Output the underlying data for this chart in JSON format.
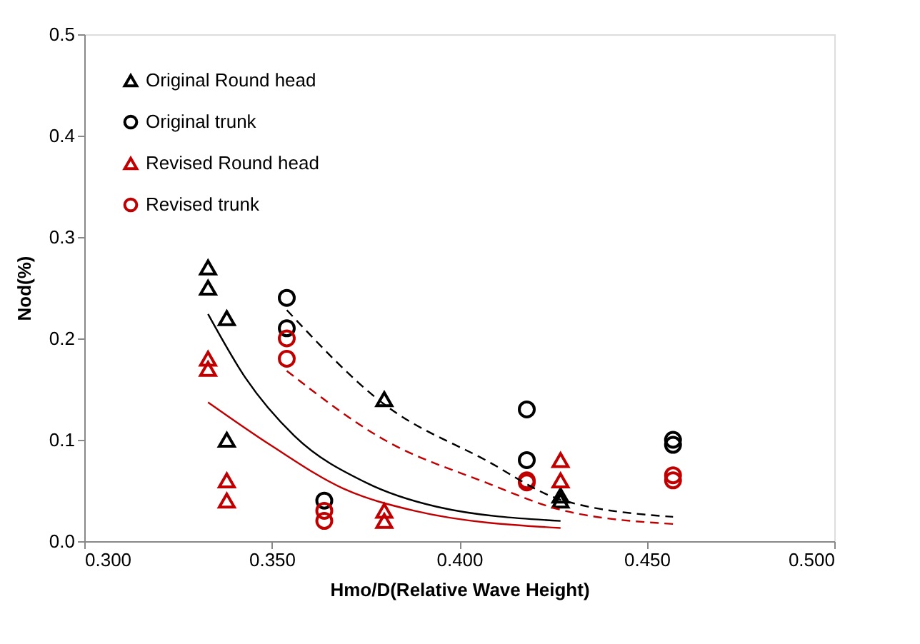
{
  "chart_data": {
    "type": "scatter",
    "xlabel": "Hmo/D(Relative Wave Height)",
    "ylabel": "Nod(%)",
    "xlim": [
      0.3,
      0.5
    ],
    "ylim": [
      0,
      0.5
    ],
    "xticks": [
      {
        "value": 0.3,
        "label": "0.300"
      },
      {
        "value": 0.35,
        "label": "0.350"
      },
      {
        "value": 0.4,
        "label": "0.400"
      },
      {
        "value": 0.45,
        "label": "0.450"
      },
      {
        "value": 0.5,
        "label": "0.500"
      }
    ],
    "yticks": [
      {
        "value": 0,
        "label": "0.0"
      },
      {
        "value": 0.1,
        "label": "0.1"
      },
      {
        "value": 0.2,
        "label": "0.2"
      },
      {
        "value": 0.3,
        "label": "0.3"
      },
      {
        "value": 0.4,
        "label": "0.4"
      },
      {
        "value": 0.5,
        "label": "0.5"
      }
    ],
    "grid": false,
    "legend": "top left",
    "series": [
      {
        "name": "Original Round head",
        "marker": "triangle",
        "color": "#000000",
        "x": [
          0.333,
          0.333,
          0.338,
          0.338,
          0.38,
          0.427,
          0.427
        ],
        "values": [
          0.27,
          0.25,
          0.22,
          0.1,
          0.14,
          0.04,
          0.045
        ]
      },
      {
        "name": "Original trunk",
        "marker": "circle",
        "color": "#000000",
        "x": [
          0.354,
          0.354,
          0.364,
          0.418,
          0.418,
          0.457,
          0.457
        ],
        "values": [
          0.24,
          0.21,
          0.04,
          0.13,
          0.08,
          0.1,
          0.095
        ]
      },
      {
        "name": "Revised Round head",
        "marker": "triangle",
        "color": "#c00000",
        "x": [
          0.333,
          0.333,
          0.338,
          0.338,
          0.38,
          0.38,
          0.427,
          0.427
        ],
        "values": [
          0.18,
          0.17,
          0.06,
          0.04,
          0.03,
          0.02,
          0.08,
          0.06
        ]
      },
      {
        "name": "Revised trunk",
        "marker": "circle",
        "color": "#c00000",
        "x": [
          0.354,
          0.354,
          0.364,
          0.364,
          0.418,
          0.418,
          0.457,
          0.457
        ],
        "values": [
          0.2,
          0.18,
          0.03,
          0.02,
          0.06,
          0.058,
          0.065,
          0.06
        ]
      },
      {
        "type": "line",
        "line_style": "solid",
        "color": "#000000",
        "x": [
          0.333,
          0.343,
          0.356,
          0.375,
          0.394,
          0.427
        ],
        "values": [
          0.224,
          0.161,
          0.104,
          0.058,
          0.034,
          0.02
        ]
      },
      {
        "type": "line",
        "line_style": "dashed",
        "color": "#000000",
        "x": [
          0.354,
          0.38,
          0.407,
          0.427,
          0.457
        ],
        "values": [
          0.228,
          0.135,
          0.08,
          0.041,
          0.024
        ]
      },
      {
        "type": "line",
        "line_style": "solid",
        "color": "#c00000",
        "x": [
          0.333,
          0.35,
          0.369,
          0.388,
          0.427
        ],
        "values": [
          0.137,
          0.094,
          0.052,
          0.03,
          0.013
        ]
      },
      {
        "type": "line",
        "line_style": "dashed",
        "color": "#c00000",
        "x": [
          0.354,
          0.38,
          0.407,
          0.427,
          0.457
        ],
        "values": [
          0.168,
          0.1,
          0.058,
          0.031,
          0.017
        ]
      }
    ]
  }
}
